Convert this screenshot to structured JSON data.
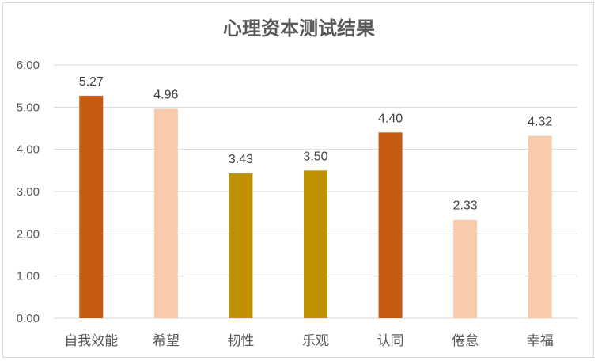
{
  "chart_data": {
    "type": "bar",
    "title": "心理资本测试结果",
    "categories": [
      "自我效能",
      "希望",
      "韧性",
      "乐观",
      "认同",
      "倦怠",
      "幸福"
    ],
    "values": [
      5.27,
      4.96,
      3.43,
      3.5,
      4.4,
      2.33,
      4.32
    ],
    "value_labels": [
      "5.27",
      "4.96",
      "3.43",
      "3.50",
      "4.40",
      "2.33",
      "4.32"
    ],
    "bar_colors": [
      "#c55a11",
      "#f8cbad",
      "#bf9000",
      "#bf9000",
      "#c55a11",
      "#f8cbad",
      "#f8cbad"
    ],
    "ylim": [
      0,
      6
    ],
    "yticks": [
      "0.00",
      "1.00",
      "2.00",
      "3.00",
      "4.00",
      "5.00",
      "6.00"
    ],
    "grid": true,
    "legend": "none",
    "xlabel": "",
    "ylabel": ""
  }
}
